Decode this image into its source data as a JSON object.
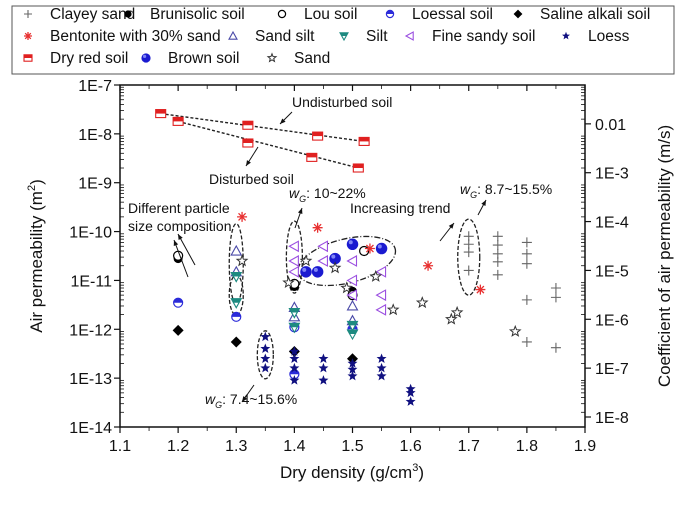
{
  "chart_data": {
    "type": "scatter",
    "title": "",
    "xlabel": "Dry density (g/cm",
    "xlabel_sup": "3",
    "xlabel_end": ")",
    "ylabel": "Air permeability (m",
    "ylabel_sup": "2",
    "ylabel_end": ")",
    "y2label": "Coefficient of air permeability (m/s)",
    "xlim": [
      1.1,
      1.9
    ],
    "ylim": [
      1e-14,
      1e-07
    ],
    "yscale": "log",
    "x_ticks": [
      "1.1",
      "1.2",
      "1.3",
      "1.4",
      "1.5",
      "1.6",
      "1.7",
      "1.8",
      "1.9"
    ],
    "y_ticks": [
      "1E-14",
      "1E-13",
      "1E-12",
      "1E-11",
      "1E-10",
      "1E-9",
      "1E-8",
      "1E-7"
    ],
    "y2_ticks": [
      "1E-8",
      "1E-7",
      "1E-6",
      "1E-5",
      "1E-4",
      "1E-3",
      "0.01"
    ],
    "legend_position": "top",
    "legend": [
      {
        "name": "Clayey sand",
        "marker": "plus",
        "color": "#666666"
      },
      {
        "name": "Brunisolic soil",
        "marker": "circle-filled",
        "color": "#000000"
      },
      {
        "name": "Lou soil",
        "marker": "circle-open",
        "color": "#000000"
      },
      {
        "name": "Loessal soil",
        "marker": "half-circle",
        "color": "#2b2bd9"
      },
      {
        "name": "Saline alkali soil",
        "marker": "diamond",
        "color": "#000000"
      },
      {
        "name": "Bentonite with 30% sand",
        "marker": "asterisk",
        "color": "#e83030"
      },
      {
        "name": "Sand silt",
        "marker": "triangle-up",
        "color": "#4a4aa8"
      },
      {
        "name": "Silt",
        "marker": "triangle-down",
        "color": "#1d8a80"
      },
      {
        "name": "Fine sandy soil",
        "marker": "triangle-left",
        "color": "#9b4fe0"
      },
      {
        "name": "Loess",
        "marker": "star-filled",
        "color": "#101080"
      },
      {
        "name": "Dry red soil",
        "marker": "square-half",
        "color": "#e02020"
      },
      {
        "name": "Brown soil",
        "marker": "sphere",
        "color": "#1a1ad0"
      },
      {
        "name": "Sand",
        "marker": "star-open",
        "color": "#333333"
      }
    ],
    "series": [
      {
        "name": "Clayey sand",
        "points": [
          [
            1.7,
            8e-11
          ],
          [
            1.7,
            5.5e-11
          ],
          [
            1.7,
            3.8e-11
          ],
          [
            1.7,
            1.6e-11
          ],
          [
            1.75,
            8e-11
          ],
          [
            1.75,
            5.3e-11
          ],
          [
            1.75,
            3.5e-11
          ],
          [
            1.75,
            2.4e-11
          ],
          [
            1.75,
            1.3e-11
          ],
          [
            1.8,
            6e-11
          ],
          [
            1.8,
            3.5e-11
          ],
          [
            1.8,
            2.2e-11
          ],
          [
            1.8,
            4e-12
          ],
          [
            1.8,
            5.5e-13
          ],
          [
            1.85,
            7e-12
          ],
          [
            1.85,
            4.5e-12
          ],
          [
            1.85,
            4.2e-13
          ]
        ]
      },
      {
        "name": "Brunisolic soil",
        "points": [
          [
            1.2,
            2.8e-11
          ],
          [
            1.4,
            7.5e-12
          ],
          [
            1.5,
            6e-12
          ]
        ]
      },
      {
        "name": "Lou soil",
        "points": [
          [
            1.2,
            3.2e-11
          ],
          [
            1.4,
            8.5e-12
          ],
          [
            1.5,
            5e-12
          ],
          [
            1.52,
            4e-11
          ]
        ]
      },
      {
        "name": "Loessal soil",
        "points": [
          [
            1.2,
            3.5e-12
          ],
          [
            1.3,
            1.8e-12
          ],
          [
            1.4,
            1.1e-12
          ],
          [
            1.4,
            1.2e-13
          ],
          [
            1.5,
            1e-12
          ]
        ]
      },
      {
        "name": "Saline alkali soil",
        "points": [
          [
            1.2,
            9.5e-13
          ],
          [
            1.3,
            5.5e-13
          ],
          [
            1.4,
            3.5e-13
          ],
          [
            1.5,
            2.5e-13
          ]
        ]
      },
      {
        "name": "Bentonite with 30% sand",
        "points": [
          [
            1.31,
            2e-10
          ],
          [
            1.44,
            1.2e-10
          ],
          [
            1.53,
            4.5e-11
          ],
          [
            1.63,
            2e-11
          ],
          [
            1.72,
            6.5e-12
          ]
        ]
      },
      {
        "name": "Sand silt",
        "points": [
          [
            1.3,
            4e-11
          ],
          [
            1.3,
            1.5e-11
          ],
          [
            1.4,
            2.8e-12
          ],
          [
            1.4,
            1.8e-12
          ],
          [
            1.5,
            3e-12
          ],
          [
            1.5,
            1.5e-12
          ]
        ]
      },
      {
        "name": "Silt",
        "points": [
          [
            1.3,
            1.2e-11
          ],
          [
            1.3,
            3.5e-12
          ],
          [
            1.4,
            2.2e-12
          ],
          [
            1.4,
            1.1e-12
          ],
          [
            1.5,
            1.2e-12
          ],
          [
            1.5,
            8e-13
          ]
        ]
      },
      {
        "name": "Fine sandy soil",
        "points": [
          [
            1.4,
            5e-11
          ],
          [
            1.4,
            2.5e-11
          ],
          [
            1.4,
            1.5e-11
          ],
          [
            1.45,
            5e-11
          ],
          [
            1.45,
            2.5e-11
          ],
          [
            1.5,
            2.5e-11
          ],
          [
            1.5,
            1e-11
          ],
          [
            1.5,
            5e-12
          ],
          [
            1.55,
            1.5e-11
          ],
          [
            1.55,
            5e-12
          ],
          [
            1.55,
            2.5e-12
          ]
        ]
      },
      {
        "name": "Loess",
        "points": [
          [
            1.35,
            7e-13
          ],
          [
            1.35,
            4e-13
          ],
          [
            1.35,
            2.5e-13
          ],
          [
            1.35,
            1.6e-13
          ],
          [
            1.4,
            3.5e-13
          ],
          [
            1.4,
            2.5e-13
          ],
          [
            1.4,
            1.6e-13
          ],
          [
            1.4,
            9e-14
          ],
          [
            1.45,
            2.5e-13
          ],
          [
            1.45,
            1.6e-13
          ],
          [
            1.45,
            9e-14
          ],
          [
            1.5,
            2e-13
          ],
          [
            1.5,
            1.5e-13
          ],
          [
            1.5,
            1.1e-13
          ],
          [
            1.55,
            2.5e-13
          ],
          [
            1.55,
            1.6e-13
          ],
          [
            1.55,
            1.1e-13
          ],
          [
            1.6,
            6e-14
          ],
          [
            1.6,
            5e-14
          ],
          [
            1.6,
            3.3e-14
          ]
        ]
      },
      {
        "name": "Dry red soil",
        "points": [
          [
            1.17,
            2.6e-08
          ],
          [
            1.2,
            1.8e-08
          ],
          [
            1.32,
            1.5e-08
          ],
          [
            1.32,
            6.5e-09
          ],
          [
            1.44,
            9e-09
          ],
          [
            1.43,
            3.3e-09
          ],
          [
            1.52,
            7e-09
          ],
          [
            1.51,
            2e-09
          ]
        ]
      },
      {
        "name": "Brown soil",
        "points": [
          [
            1.42,
            1.5e-11
          ],
          [
            1.44,
            1.5e-11
          ],
          [
            1.47,
            2.8e-11
          ],
          [
            1.5,
            5.5e-11
          ],
          [
            1.55,
            4.5e-11
          ]
        ]
      },
      {
        "name": "Sand",
        "points": [
          [
            1.31,
            2.5e-11
          ],
          [
            1.39,
            9e-12
          ],
          [
            1.42,
            2.5e-11
          ],
          [
            1.47,
            1.8e-11
          ],
          [
            1.49,
            7e-12
          ],
          [
            1.54,
            1.2e-11
          ],
          [
            1.57,
            2.5e-12
          ],
          [
            1.62,
            3.5e-12
          ],
          [
            1.67,
            1.6e-12
          ],
          [
            1.68,
            2.2e-12
          ],
          [
            1.78,
            9e-13
          ]
        ]
      }
    ],
    "trendlines": [
      {
        "name": "Undisturbed soil",
        "points": [
          [
            1.17,
            2.6e-08
          ],
          [
            1.52,
            7e-09
          ]
        ]
      },
      {
        "name": "Disturbed soil",
        "points": [
          [
            1.2,
            1.8e-08
          ],
          [
            1.51,
            2e-09
          ]
        ]
      }
    ],
    "annotations": [
      {
        "text": "Undisturbed soil"
      },
      {
        "text": "Disturbed soil"
      },
      {
        "text": "Different particle"
      },
      {
        "text": "size composition"
      },
      {
        "text_prefix": "w",
        "text_sub": "G",
        "text": ": 10~22%"
      },
      {
        "text": "Increasing trend"
      },
      {
        "text_prefix": "w",
        "text_sub": "G",
        "text": ": 8.7~15.5%"
      },
      {
        "text_prefix": "w",
        "text_sub": "G",
        "text": ": 7.4~15.6%"
      }
    ]
  }
}
